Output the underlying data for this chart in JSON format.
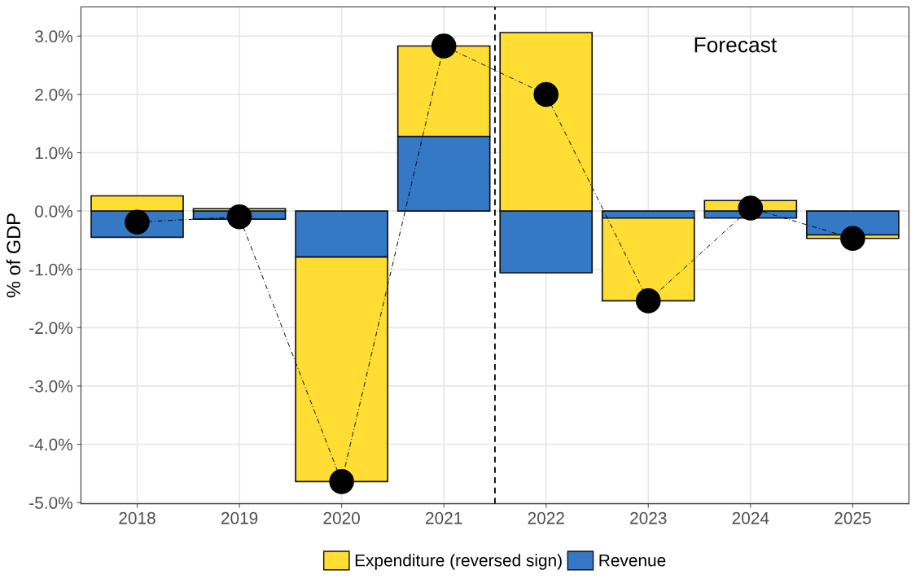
{
  "chart_data": {
    "type": "bar",
    "stacked": true,
    "ylabel": "% of GDP",
    "categories": [
      "2018",
      "2019",
      "2020",
      "2021",
      "2022",
      "2023",
      "2024",
      "2025"
    ],
    "series": [
      {
        "name": "Revenue",
        "color": "#3478c6",
        "values": [
          -0.45,
          -0.14,
          -0.79,
          1.28,
          -1.06,
          -0.12,
          -0.12,
          -0.41
        ]
      },
      {
        "name": "Expenditure (reversed sign)",
        "color": "#ffdd33",
        "values": [
          0.26,
          0.04,
          -3.85,
          1.55,
          3.06,
          -1.42,
          0.18,
          -0.06
        ]
      },
      {
        "type": "line",
        "color": "#000000",
        "line_style": "dashed",
        "marker": "circle",
        "values": [
          -0.19,
          -0.1,
          -4.64,
          2.83,
          2.0,
          -1.54,
          0.05,
          -0.47
        ]
      }
    ],
    "ylim": [
      -5.02,
      3.5
    ],
    "yticks": [
      {
        "value": -5,
        "label": "-5.0%"
      },
      {
        "value": -4,
        "label": "-4.0%"
      },
      {
        "value": -3,
        "label": "-3.0%"
      },
      {
        "value": -2,
        "label": "-2.0%"
      },
      {
        "value": -1,
        "label": "-1.0%"
      },
      {
        "value": 0,
        "label": "0.0%"
      },
      {
        "value": 1,
        "label": "1.0%"
      },
      {
        "value": 2,
        "label": "2.0%"
      },
      {
        "value": 3,
        "label": "3.0%"
      }
    ],
    "ref_lines": [
      {
        "axis": "x",
        "value": "2022",
        "color": "#000000",
        "line_style": "dashed"
      }
    ],
    "annotations": [
      "Forecast"
    ],
    "grid": true,
    "legend": "bottom"
  }
}
